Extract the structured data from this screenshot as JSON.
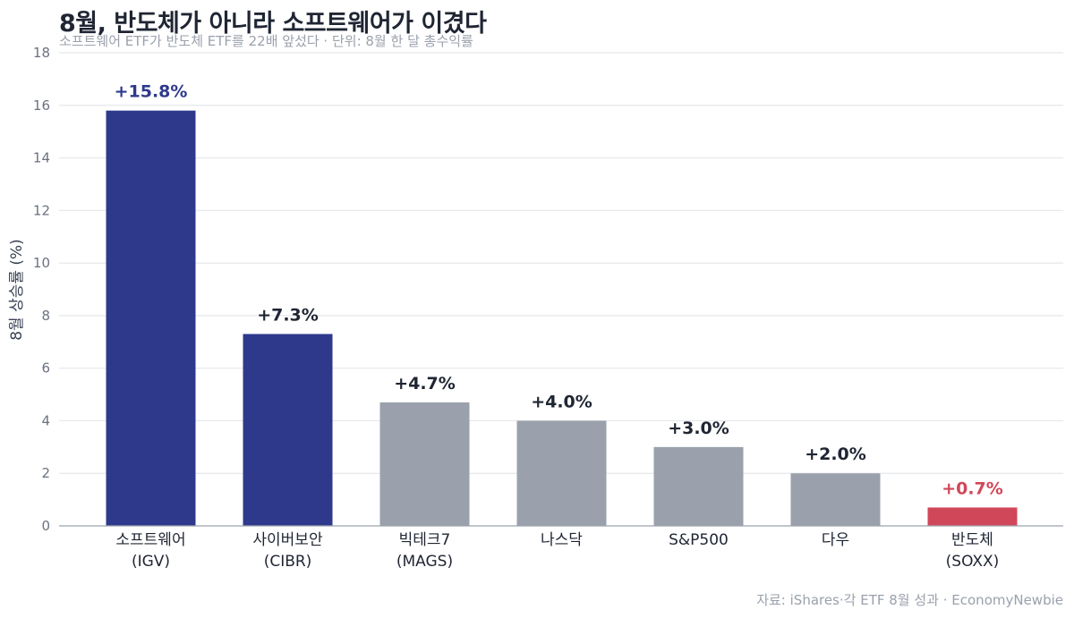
{
  "header": {
    "title": "8월, 반도체가 아니라 소프트웨어가 이겼다",
    "subtitle": "소프트웨어 ETF가 반도체 ETF를 22배 앞섰다 · 단위: 8월 한 달 총수익률"
  },
  "footer": {
    "source": "자료: iShares·각 ETF 8월 성과 · EconomyNewbie"
  },
  "colors": {
    "highlight": "#2f398c",
    "neutral": "#9aa1ac",
    "negative": "#d1475a",
    "grid": "#e5e7eb",
    "axis": "#9ca3af"
  },
  "chart_data": {
    "type": "bar",
    "ylabel": "8월 상승률 (%)",
    "ylim": [
      0,
      18
    ],
    "yticks": [
      0,
      2,
      4,
      6,
      8,
      10,
      12,
      14,
      16,
      18
    ],
    "grid": true,
    "categories": [
      {
        "line1": "소프트웨어",
        "line2": "(IGV)"
      },
      {
        "line1": "사이버보안",
        "line2": "(CIBR)"
      },
      {
        "line1": "빅테크7",
        "line2": "(MAGS)"
      },
      {
        "line1": "나스닥",
        "line2": ""
      },
      {
        "line1": "S&P500",
        "line2": ""
      },
      {
        "line1": "다우",
        "line2": ""
      },
      {
        "line1": "반도체",
        "line2": "(SOXX)"
      }
    ],
    "values": [
      15.8,
      7.3,
      4.7,
      4.0,
      3.0,
      2.0,
      0.7
    ],
    "labels": [
      "+15.8%",
      "+7.3%",
      "+4.7%",
      "+4.0%",
      "+3.0%",
      "+2.0%",
      "+0.7%"
    ],
    "bar_colors": [
      "#2f398c",
      "#2f398c",
      "#9aa1ac",
      "#9aa1ac",
      "#9aa1ac",
      "#9aa1ac",
      "#d1475a"
    ],
    "label_colors": [
      "#2f398c",
      "#1f2533",
      "#1f2533",
      "#1f2533",
      "#1f2533",
      "#1f2533",
      "#d1475a"
    ]
  }
}
